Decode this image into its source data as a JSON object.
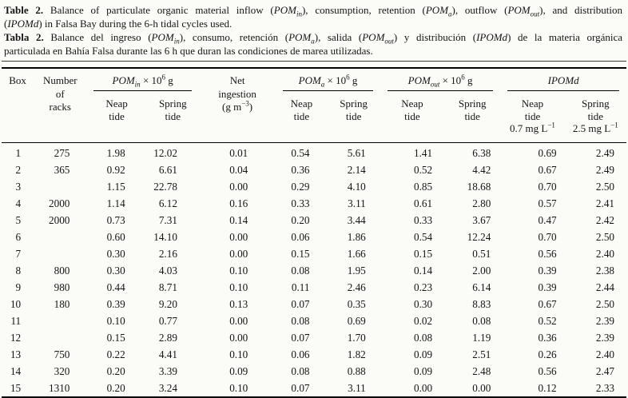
{
  "page": {
    "background_color": "#fbfbf8",
    "text_color": "#151515",
    "rule_color": "#000000"
  },
  "caption": {
    "lines": [
      {
        "justify": true,
        "segments": [
          {
            "t": "Table 2.",
            "b": true
          },
          {
            "t": " Balance of particulate organic material inflow ("
          },
          {
            "t": "POM",
            "i": true
          },
          {
            "t": "in",
            "i": true,
            "sub": true
          },
          {
            "t": "), consumption, retention ("
          },
          {
            "t": "POM",
            "i": true
          },
          {
            "t": "a",
            "i": true,
            "sub": true
          },
          {
            "t": "), outflow ("
          },
          {
            "t": "POM",
            "i": true
          },
          {
            "t": "out",
            "i": true,
            "sub": true
          },
          {
            "t": "), and distribution"
          }
        ]
      },
      {
        "justify": false,
        "segments": [
          {
            "t": "("
          },
          {
            "t": "IPOMd",
            "i": true
          },
          {
            "t": ") in Falsa Bay during the 6-h tidal cycles used."
          }
        ]
      },
      {
        "justify": true,
        "segments": [
          {
            "t": "Tabla 2.",
            "b": true
          },
          {
            "t": " Balance del ingreso ("
          },
          {
            "t": "POM",
            "i": true
          },
          {
            "t": "in",
            "i": true,
            "sub": true
          },
          {
            "t": "), consumo, retención ("
          },
          {
            "t": "POM",
            "i": true
          },
          {
            "t": "a",
            "i": true,
            "sub": true
          },
          {
            "t": "), salida ("
          },
          {
            "t": "POM",
            "i": true
          },
          {
            "t": "out",
            "i": true,
            "sub": true
          },
          {
            "t": ") y distribución ("
          },
          {
            "t": "IPOMd",
            "i": true
          },
          {
            "t": ") de la materia orgánica"
          }
        ]
      },
      {
        "justify": false,
        "segments": [
          {
            "t": "particulada en Bahía Falsa durante las 6 h que duran las condiciones de marea utilizadas."
          }
        ]
      }
    ]
  },
  "table": {
    "head": {
      "box": [
        {
          "t": "Box"
        }
      ],
      "racks_lines": [
        [
          {
            "t": "Number"
          }
        ],
        [
          {
            "t": "of"
          }
        ],
        [
          {
            "t": "racks"
          }
        ]
      ],
      "pom_in": [
        {
          "t": "POM",
          "i": true
        },
        {
          "t": "in",
          "i": true,
          "sub": true
        },
        {
          "t": " × 10"
        },
        {
          "t": "6",
          "sup": true
        },
        {
          "t": " g"
        }
      ],
      "net_lines": [
        [
          {
            "t": "Net"
          }
        ],
        [
          {
            "t": "ingestion"
          }
        ],
        [
          {
            "t": "(g m"
          },
          {
            "t": "−3",
            "sup": true
          },
          {
            "t": ")"
          }
        ]
      ],
      "pom_a": [
        {
          "t": "POM",
          "i": true
        },
        {
          "t": "a",
          "i": true,
          "sub": true
        },
        {
          "t": " × 10"
        },
        {
          "t": "6",
          "sup": true
        },
        {
          "t": " g"
        }
      ],
      "pom_out": [
        {
          "t": "POM",
          "i": true
        },
        {
          "t": "out",
          "i": true,
          "sub": true
        },
        {
          "t": " × 10"
        },
        {
          "t": "6",
          "sup": true
        },
        {
          "t": " g"
        }
      ],
      "ipomd": [
        {
          "t": "IPOMd",
          "i": true
        }
      ],
      "neap_lines": [
        [
          {
            "t": "Neap"
          }
        ],
        [
          {
            "t": "tide"
          }
        ]
      ],
      "spring_lines": [
        [
          {
            "t": "Spring"
          }
        ],
        [
          {
            "t": "tide"
          }
        ]
      ],
      "ipomd_neap_lines": [
        [
          {
            "t": "Neap"
          }
        ],
        [
          {
            "t": "tide"
          }
        ],
        [
          {
            "t": "0.7 mg L"
          },
          {
            "t": "−1",
            "sup": true
          }
        ]
      ],
      "ipomd_spring_lines": [
        [
          {
            "t": "Spring"
          }
        ],
        [
          {
            "t": "tide"
          }
        ],
        [
          {
            "t": "2.5 mg L"
          },
          {
            "t": "−1",
            "sup": true
          }
        ]
      ]
    },
    "column_ids": [
      "box",
      "racks",
      "pomin-neap",
      "pomin-spring",
      "net-ingestion",
      "poma-neap",
      "poma-spring",
      "pomout-neap",
      "pomout-spring",
      "ipomd-neap",
      "ipomd-spring"
    ],
    "rows": [
      [
        "1",
        "275",
        "1.98",
        "12.02",
        "0.01",
        "0.54",
        "5.61",
        "1.41",
        "6.38",
        "0.69",
        "2.49"
      ],
      [
        "2",
        "365",
        "0.92",
        "6.61",
        "0.04",
        "0.36",
        "2.14",
        "0.52",
        "4.42",
        "0.67",
        "2.49"
      ],
      [
        "3",
        "",
        "1.15",
        "22.78",
        "0.00",
        "0.29",
        "4.10",
        "0.85",
        "18.68",
        "0.70",
        "2.50"
      ],
      [
        "4",
        "2000",
        "1.14",
        "6.12",
        "0.16",
        "0.33",
        "3.11",
        "0.61",
        "2.80",
        "0.57",
        "2.41"
      ],
      [
        "5",
        "2000",
        "0.73",
        "7.31",
        "0.14",
        "0.20",
        "3.44",
        "0.33",
        "3.67",
        "0.47",
        "2.42"
      ],
      [
        "6",
        "",
        "0.60",
        "14.10",
        "0.00",
        "0.06",
        "1.86",
        "0.54",
        "12.24",
        "0.70",
        "2.50"
      ],
      [
        "7",
        "",
        "0.30",
        "2.16",
        "0.00",
        "0.15",
        "1.66",
        "0.15",
        "0.51",
        "0.56",
        "2.40"
      ],
      [
        "8",
        "800",
        "0.30",
        "4.03",
        "0.10",
        "0.08",
        "1.95",
        "0.14",
        "2.00",
        "0.39",
        "2.38"
      ],
      [
        "9",
        "980",
        "0.44",
        "8.71",
        "0.10",
        "0.11",
        "2.46",
        "0.23",
        "6.14",
        "0.39",
        "2.44"
      ],
      [
        "10",
        "180",
        "0.39",
        "9.20",
        "0.13",
        "0.07",
        "0.35",
        "0.30",
        "8.83",
        "0.67",
        "2.50"
      ],
      [
        "11",
        "",
        "0.10",
        "0.77",
        "0.00",
        "0.08",
        "0.69",
        "0.02",
        "0.08",
        "0.52",
        "2.39"
      ],
      [
        "12",
        "",
        "0.15",
        "2.89",
        "0.00",
        "0.07",
        "1.70",
        "0.08",
        "1.19",
        "0.36",
        "2.39"
      ],
      [
        "13",
        "750",
        "0.22",
        "4.41",
        "0.10",
        "0.06",
        "1.82",
        "0.09",
        "2.51",
        "0.26",
        "2.40"
      ],
      [
        "14",
        "320",
        "0.20",
        "3.39",
        "0.09",
        "0.08",
        "0.88",
        "0.09",
        "2.48",
        "0.56",
        "2.47"
      ],
      [
        "15",
        "1310",
        "0.20",
        "3.24",
        "0.10",
        "0.07",
        "3.11",
        "0.00",
        "0.00",
        "0.12",
        "2.33"
      ]
    ]
  }
}
